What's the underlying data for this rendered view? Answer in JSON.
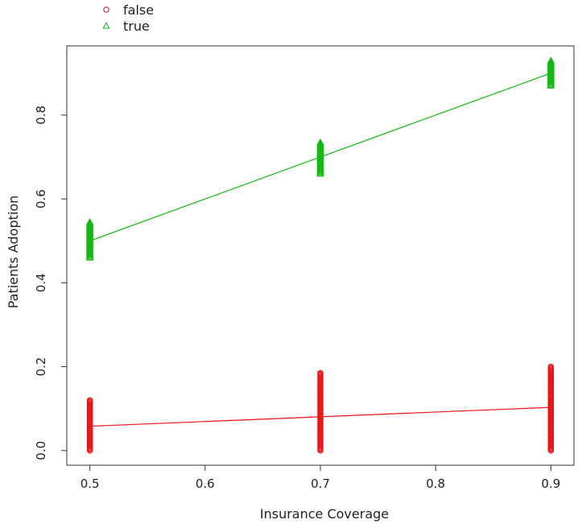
{
  "chart_data": {
    "type": "scatter",
    "title": "",
    "xlabel": "Insurance Coverage",
    "ylabel": "Patients Adoption",
    "xlim": [
      0.48,
      0.92
    ],
    "ylim": [
      -0.035,
      0.965
    ],
    "x_ticks": [
      0.5,
      0.6,
      0.7,
      0.8,
      0.9
    ],
    "x_tick_labels": [
      "0.5",
      "0.6",
      "0.7",
      "0.8",
      "0.9"
    ],
    "y_ticks": [
      0.0,
      0.2,
      0.4,
      0.6,
      0.8
    ],
    "y_tick_labels": [
      "0.0",
      "0.2",
      "0.4",
      "0.6",
      "0.8"
    ],
    "grid": false,
    "legend_position": "top-left, above plot",
    "series": [
      {
        "name": "false",
        "color": "#ee1111",
        "marker": "circle",
        "x": [
          0.5,
          0.7,
          0.9
        ],
        "y_min": [
          0.0,
          0.0,
          0.0
        ],
        "y_max": [
          0.12,
          0.185,
          0.2
        ],
        "fit_line": {
          "x": [
            0.5,
            0.9
          ],
          "y": [
            0.058,
            0.103
          ]
        }
      },
      {
        "name": "true",
        "color": "#11bb11",
        "marker": "triangle",
        "x": [
          0.5,
          0.7,
          0.9
        ],
        "y_min": [
          0.46,
          0.66,
          0.87
        ],
        "y_max": [
          0.545,
          0.735,
          0.93
        ],
        "fit_line": {
          "x": [
            0.5,
            0.9
          ],
          "y": [
            0.5,
            0.9
          ]
        }
      }
    ]
  }
}
